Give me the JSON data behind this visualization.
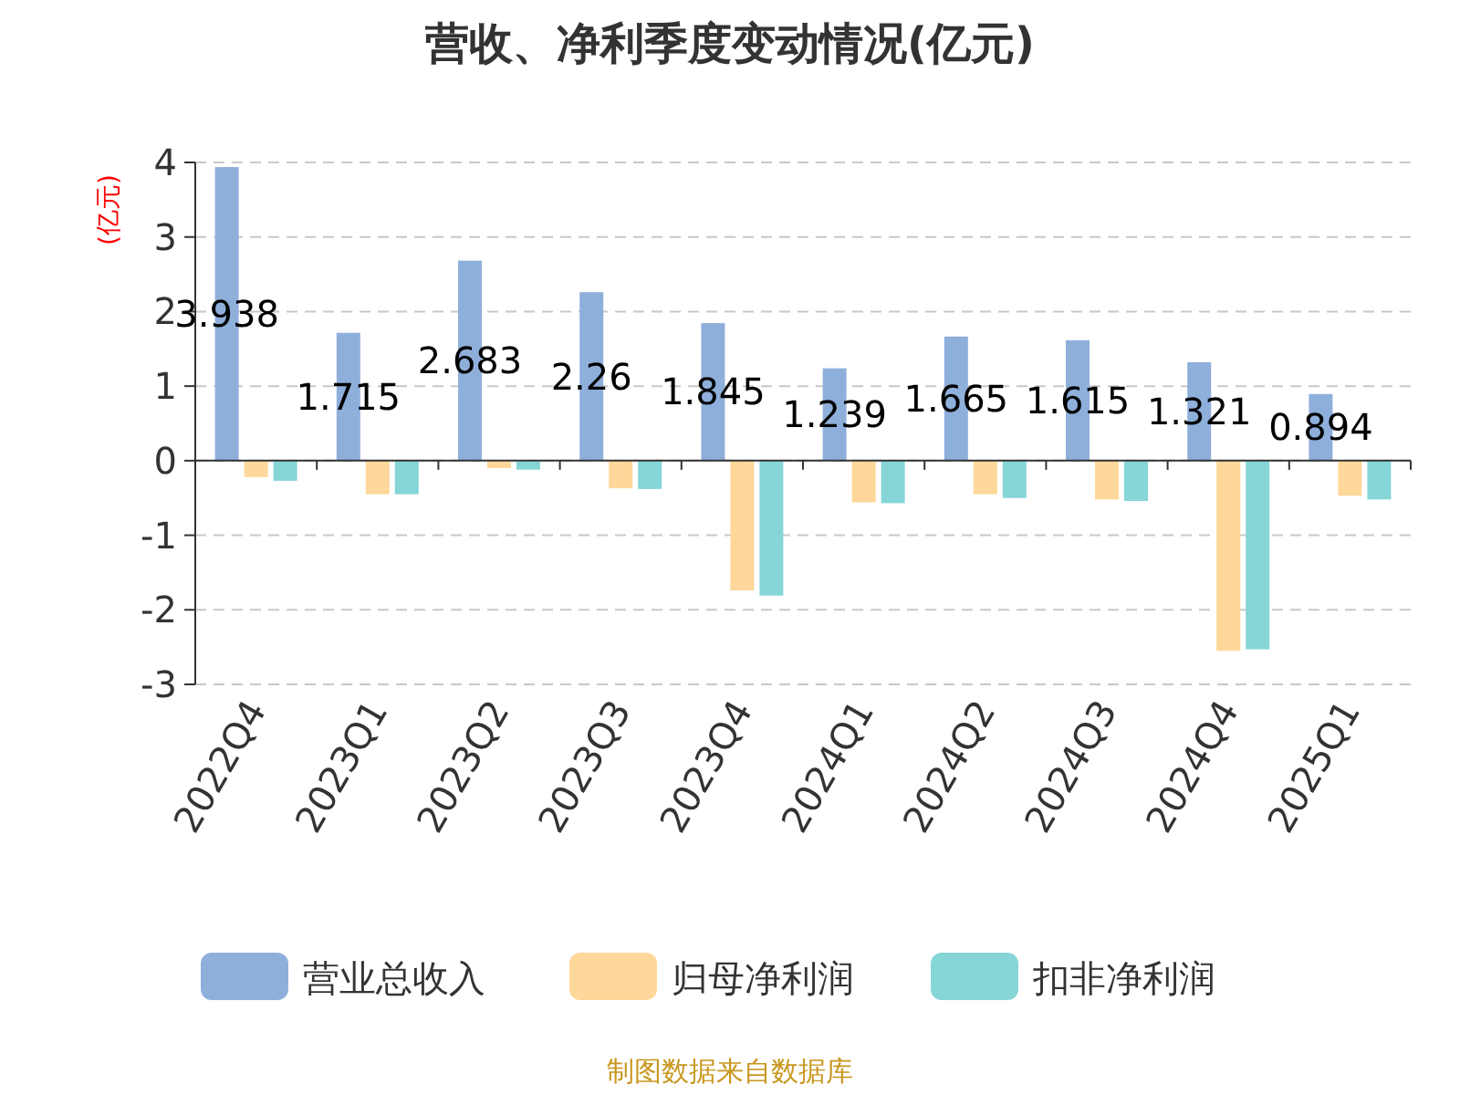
{
  "chart_data": {
    "type": "bar",
    "title": "营收、净利季度变动情况(亿元)",
    "ylabel": "(亿元)",
    "categories": [
      "2022Q4",
      "2023Q1",
      "2023Q2",
      "2023Q3",
      "2023Q4",
      "2024Q1",
      "2024Q2",
      "2024Q3",
      "2024Q4",
      "2025Q1"
    ],
    "series": [
      {
        "name": "营业总收入",
        "color": "#8fafdb",
        "values": [
          3.938,
          1.715,
          2.683,
          2.26,
          1.845,
          1.239,
          1.665,
          1.615,
          1.321,
          0.894
        ],
        "value_labels": [
          "3.938",
          "1.715",
          "2.683",
          "2.26",
          "1.845",
          "1.239",
          "1.665",
          "1.615",
          "1.321",
          "0.894"
        ]
      },
      {
        "name": "归母净利润",
        "color": "#fed89a",
        "values": [
          -0.22,
          -0.45,
          -0.1,
          -0.37,
          -1.74,
          -0.56,
          -0.45,
          -0.52,
          -2.55,
          -0.47
        ]
      },
      {
        "name": "扣非净利润",
        "color": "#86d5d7",
        "values": [
          -0.27,
          -0.45,
          -0.12,
          -0.38,
          -1.81,
          -0.57,
          -0.5,
          -0.54,
          -2.53,
          -0.52
        ]
      }
    ],
    "ylim": [
      -3,
      4
    ],
    "yticks": [
      -3,
      -2,
      -1,
      0,
      1,
      2,
      3,
      4
    ],
    "grid": "y",
    "legend": "bottom",
    "annotations": [
      "制图数据来自数据库"
    ]
  }
}
